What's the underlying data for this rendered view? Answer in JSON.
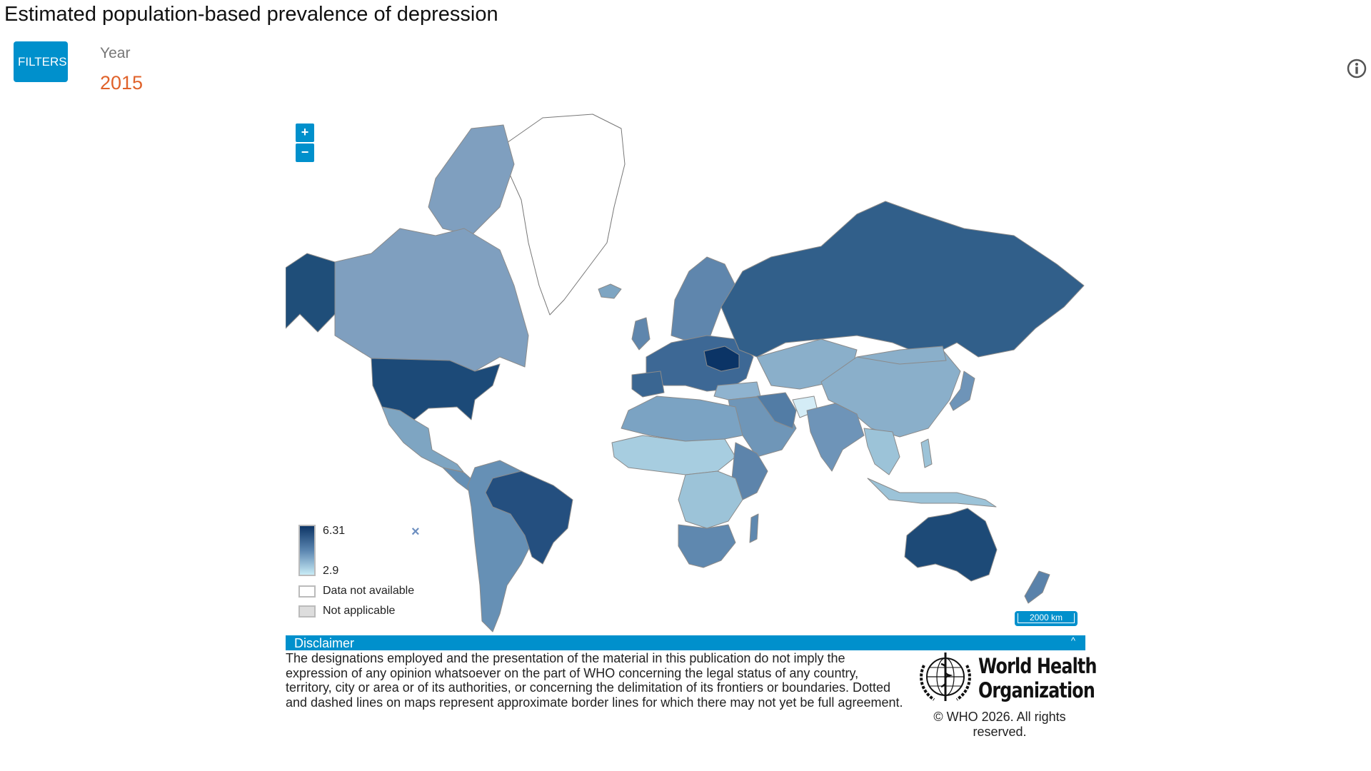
{
  "header": {
    "title": "Estimated population-based prevalence of depression"
  },
  "filters": {
    "button_label": "FILTERS",
    "year_label": "Year",
    "year_value": "2015"
  },
  "map": {
    "zoom_in": "+",
    "zoom_out": "−",
    "legend": {
      "max": "6.31",
      "min": "2.9",
      "no_data": "Data not available",
      "not_applicable": "Not applicable",
      "close": "×"
    },
    "scale": "2000 km",
    "colors": {
      "high": "#0d3566",
      "low": "#c8ecf6",
      "no_data": "#ffffff",
      "not_applicable": "#dddddd"
    }
  },
  "disclaimer": {
    "title": "Disclaimer",
    "toggle": "^",
    "text": "The designations employed and the presentation of the material in this publication do not imply the expression of any opinion whatsoever on the part of WHO concerning the legal status of any country, territory, city or area or of its authorities, or concerning the delimitation of its frontiers or boundaries. Dotted and dashed lines on maps represent approximate border lines for which there may not yet be full agreement."
  },
  "footer": {
    "logo_text": "World Health Organization",
    "copyright": "© WHO 2026. All rights reserved."
  }
}
